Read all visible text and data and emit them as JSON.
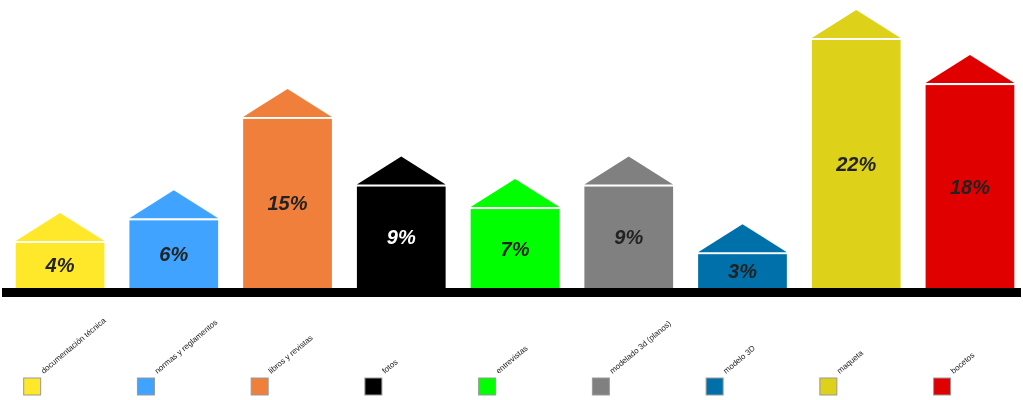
{
  "chart_data": {
    "type": "bar",
    "categories": [
      "documentación técnica",
      "normas y reglamentos",
      "libros y revistas",
      "fotos",
      "entrevistas",
      "modelado 3d (planos)",
      "modelo 3D",
      "maqueta",
      "bocetos"
    ],
    "values": [
      4,
      6,
      15,
      9,
      7,
      9,
      3,
      22,
      18
    ],
    "colors": [
      "#ffe82a",
      "#3fa3ff",
      "#f07f3c",
      "#000000",
      "#00ff00",
      "#808080",
      "#0070aa",
      "#ddd11a",
      "#e00000"
    ],
    "value_labels": [
      "4%",
      "6%",
      "15%",
      "9%",
      "7%",
      "9%",
      "3%",
      "22%",
      "18%"
    ]
  }
}
